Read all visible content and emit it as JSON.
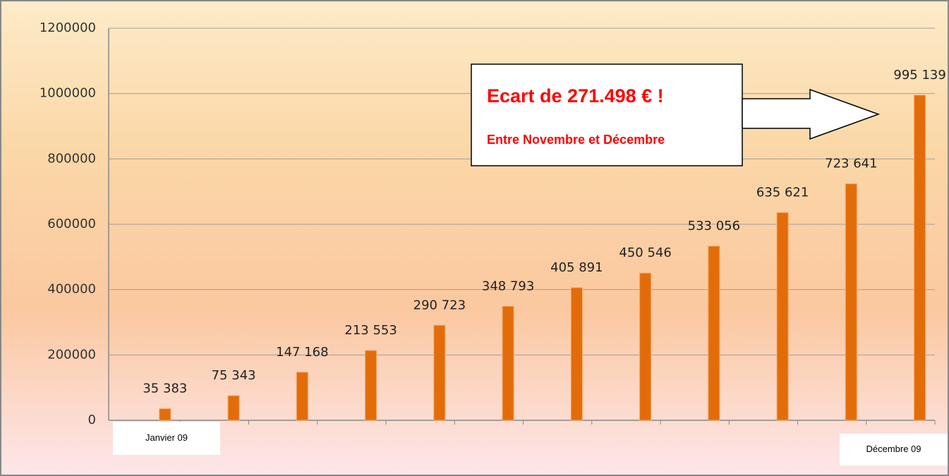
{
  "chart_data": {
    "type": "bar",
    "categories": [
      "Janvier 09",
      null,
      null,
      null,
      null,
      null,
      null,
      null,
      null,
      null,
      null,
      "Décembre 09"
    ],
    "values": [
      35383,
      75343,
      147168,
      213553,
      290723,
      348793,
      405891,
      450546,
      533056,
      635621,
      723641,
      995139
    ],
    "value_labels": [
      "35 383",
      "75 343",
      "147 168",
      "213 553",
      "290 723",
      "348 793",
      "405 891",
      "450 546",
      "533 056",
      "635 621",
      "723 641",
      "995 139"
    ],
    "color": "#e36c0a",
    "ylim": [
      0,
      1200000
    ],
    "yticks": [
      0,
      200000,
      400000,
      600000,
      800000,
      1000000,
      1200000
    ],
    "grid": true,
    "annotations": [
      "Ecart de 271.498 € !",
      "Entre Novembre et Décembre"
    ]
  }
}
